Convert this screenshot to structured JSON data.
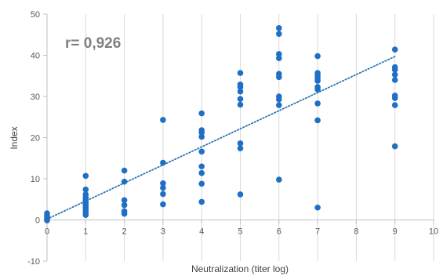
{
  "chart_data": {
    "type": "scatter",
    "title": "",
    "xlabel": "Neutralization (titer log)",
    "ylabel": "Index",
    "xlim": [
      0,
      10
    ],
    "ylim": [
      -10,
      50
    ],
    "x_ticks": [
      0,
      1,
      2,
      3,
      4,
      5,
      6,
      7,
      8,
      9,
      10
    ],
    "y_ticks": [
      -10,
      0,
      10,
      20,
      30,
      40,
      50
    ],
    "x_tick_labels": [
      "0",
      "1",
      "2",
      "3",
      "4",
      "5",
      "6",
      "7",
      "8",
      "9",
      "10"
    ],
    "y_tick_labels": [
      "-10",
      "0",
      "10",
      "20",
      "30",
      "40",
      "50"
    ],
    "grid": "vertical gridlines only",
    "annotation": "r= 0,926",
    "colors": {
      "points": "#1f6fc5",
      "trendline": "#2e75b6",
      "grid": "#d9d9d9",
      "axis": "#bfbfbf"
    },
    "series": [
      {
        "points": [
          [
            0,
            1.6
          ],
          [
            0,
            1.0
          ],
          [
            0,
            0.6
          ],
          [
            0,
            0.2
          ],
          [
            0,
            -0.1
          ],
          [
            1,
            10.7
          ],
          [
            1,
            7.4
          ],
          [
            1,
            6.2
          ],
          [
            1,
            5.5
          ],
          [
            1,
            4.9
          ],
          [
            1,
            4.4
          ],
          [
            1,
            3.9
          ],
          [
            1,
            3.4
          ],
          [
            1,
            2.9
          ],
          [
            1,
            2.3
          ],
          [
            1,
            1.7
          ],
          [
            1,
            1.2
          ],
          [
            2,
            12.0
          ],
          [
            2,
            9.3
          ],
          [
            2,
            4.8
          ],
          [
            2,
            3.6
          ],
          [
            2,
            2.1
          ],
          [
            2,
            1.5
          ],
          [
            3,
            24.3
          ],
          [
            3,
            13.9
          ],
          [
            3,
            8.9
          ],
          [
            3,
            7.8
          ],
          [
            3,
            6.3
          ],
          [
            3,
            3.8
          ],
          [
            4,
            25.9
          ],
          [
            4,
            21.8
          ],
          [
            4,
            21.2
          ],
          [
            4,
            20.2
          ],
          [
            4,
            16.6
          ],
          [
            4,
            13.0
          ],
          [
            4,
            11.4
          ],
          [
            4,
            8.8
          ],
          [
            4,
            4.4
          ],
          [
            5,
            35.7
          ],
          [
            5,
            32.9
          ],
          [
            5,
            32.3
          ],
          [
            5,
            31.2
          ],
          [
            5,
            29.4
          ],
          [
            5,
            28.0
          ],
          [
            5,
            18.6
          ],
          [
            5,
            17.4
          ],
          [
            5,
            6.2
          ],
          [
            6,
            46.6
          ],
          [
            6,
            45.2
          ],
          [
            6,
            40.3
          ],
          [
            6,
            39.3
          ],
          [
            6,
            35.5
          ],
          [
            6,
            34.7
          ],
          [
            6,
            30.0
          ],
          [
            6,
            29.3
          ],
          [
            6,
            27.9
          ],
          [
            6,
            9.8
          ],
          [
            7,
            39.8
          ],
          [
            7,
            35.7
          ],
          [
            7,
            35.1
          ],
          [
            7,
            34.4
          ],
          [
            7,
            33.8
          ],
          [
            7,
            32.3
          ],
          [
            7,
            31.7
          ],
          [
            7,
            28.3
          ],
          [
            7,
            24.2
          ],
          [
            7,
            3.0
          ],
          [
            9,
            41.4
          ],
          [
            9,
            37.1
          ],
          [
            9,
            36.5
          ],
          [
            9,
            35.3
          ],
          [
            9,
            34.0
          ],
          [
            9,
            30.2
          ],
          [
            9,
            29.6
          ],
          [
            9,
            27.9
          ],
          [
            9,
            17.9
          ]
        ]
      }
    ],
    "trendline": {
      "style": "dotted",
      "x": [
        0,
        9
      ],
      "y": [
        0.2,
        39.7
      ]
    }
  }
}
